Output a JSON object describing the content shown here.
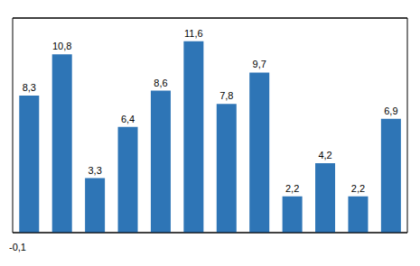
{
  "chart_data": {
    "type": "bar",
    "categories": [
      null,
      null,
      null,
      null,
      null,
      null,
      null,
      null,
      null,
      null,
      null,
      null
    ],
    "values": [
      8.3,
      10.8,
      3.3,
      6.4,
      8.6,
      11.6,
      7.8,
      9.7,
      2.2,
      4.2,
      2.2,
      6.9
    ],
    "value_labels": [
      "8,3",
      "10,8",
      "3,3",
      "6,4",
      "8,6",
      "11,6",
      "7,8",
      "9,7",
      "2,2",
      "4,2",
      "2,2",
      "6,9"
    ],
    "data_labels": true,
    "color": "#2E75B6",
    "ylim": [
      0,
      13.0
    ],
    "yticks": [
      4.0,
      8.0,
      12.0
    ],
    "grid": true,
    "tick_labels": false,
    "annotations": [
      "-0,1"
    ]
  }
}
